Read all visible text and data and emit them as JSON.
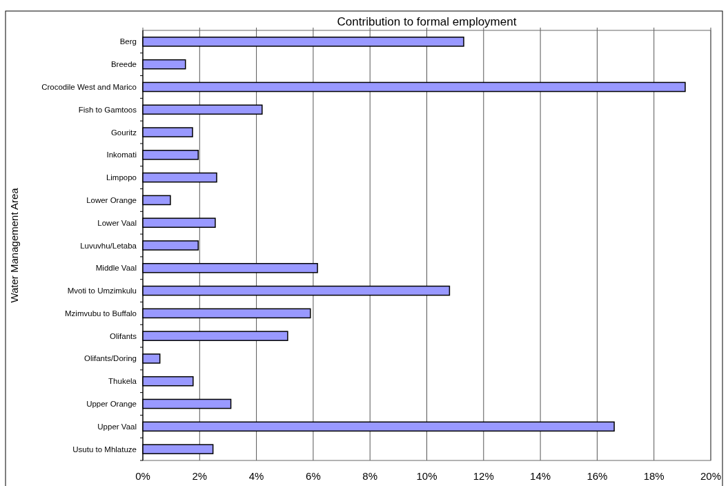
{
  "chart_data": {
    "type": "bar",
    "orientation": "horizontal",
    "title": "Contribution to formal employment",
    "ylabel": "Water Management Area",
    "categories": [
      "Berg",
      "Breede",
      "Crocodile West and Marico",
      "Fish to Gamtoos",
      "Gouritz",
      "Inkomati",
      "Limpopo",
      "Lower Orange",
      "Lower Vaal",
      "Luvuvhu/Letaba",
      "Middle Vaal",
      "Mvoti to Umzimkulu",
      "Mzimvubu to Buffalo",
      "Olifants",
      "Olifants/Doring",
      "Thukela",
      "Upper Orange",
      "Upper Vaal",
      "Usutu to Mhlatuze"
    ],
    "values": [
      11.3,
      1.5,
      19.1,
      4.2,
      1.75,
      1.95,
      2.6,
      0.97,
      2.55,
      1.95,
      6.15,
      10.8,
      5.9,
      5.1,
      0.6,
      1.77,
      3.1,
      16.6,
      2.47
    ],
    "color": "#9999ff",
    "xlim": [
      0,
      20
    ],
    "xticks": [
      {
        "value": 0,
        "label": "0%"
      },
      {
        "value": 2,
        "label": "2%"
      },
      {
        "value": 4,
        "label": "4%"
      },
      {
        "value": 6,
        "label": "6%"
      },
      {
        "value": 8,
        "label": "8%"
      },
      {
        "value": 10,
        "label": "10%"
      },
      {
        "value": 12,
        "label": "12%"
      },
      {
        "value": 14,
        "label": "14%"
      },
      {
        "value": 16,
        "label": "16%"
      },
      {
        "value": 18,
        "label": "18%"
      },
      {
        "value": 20,
        "label": "20%"
      }
    ],
    "grid": "x"
  }
}
